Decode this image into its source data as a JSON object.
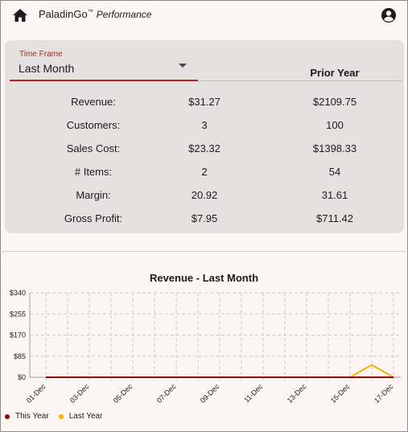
{
  "header": {
    "app_name": "PaladinGo",
    "trademark": "™",
    "subtitle": "Performance",
    "home_icon": "home-icon",
    "account_icon": "account-circle-icon"
  },
  "time_frame": {
    "label": "Time Frame",
    "value": "Last Month"
  },
  "columns": {
    "prior": "Prior Year"
  },
  "metrics": [
    {
      "label": "Revenue:",
      "current": "$31.27",
      "prior": "$2109.75"
    },
    {
      "label": "Customers:",
      "current": "3",
      "prior": "100"
    },
    {
      "label": "Sales Cost:",
      "current": "$23.32",
      "prior": "$1398.33"
    },
    {
      "label": "# Items:",
      "current": "2",
      "prior": "54"
    },
    {
      "label": "Margin:",
      "current": "20.92",
      "prior": "31.61"
    },
    {
      "label": "Gross Profit:",
      "current": "$7.95",
      "prior": "$711.42"
    }
  ],
  "colors": {
    "accent": "#b3261e",
    "this_year": "#8b0000",
    "last_year": "#f4b400",
    "card": "#e5e1e1",
    "background": "#fdf5f4"
  },
  "chart_data": {
    "type": "line",
    "title": "Revenue - Last Month",
    "x": [
      "01-Dec",
      "02-Dec",
      "03-Dec",
      "04-Dec",
      "05-Dec",
      "06-Dec",
      "07-Dec",
      "08-Dec",
      "09-Dec",
      "10-Dec",
      "11-Dec",
      "12-Dec",
      "13-Dec",
      "14-Dec",
      "15-Dec",
      "16-Dec",
      "17-Dec"
    ],
    "tick_labels": [
      "01-Dec",
      "03-Dec",
      "05-Dec",
      "07-Dec",
      "09-Dec",
      "11-Dec",
      "13-Dec",
      "15-Dec",
      "17-Dec"
    ],
    "y_ticks": [
      "$0",
      "$85",
      "$170",
      "$255",
      "$340"
    ],
    "ylim": [
      0,
      340
    ],
    "grid": true,
    "legend_position": "bottom-left",
    "series": [
      {
        "name": "This Year",
        "values": [
          0,
          0,
          0,
          0,
          0,
          0,
          0,
          0,
          0,
          0,
          0,
          0,
          0,
          0,
          0,
          0,
          0
        ]
      },
      {
        "name": "Last Year",
        "values": [
          0,
          0,
          0,
          0,
          0,
          0,
          0,
          0,
          0,
          0,
          0,
          0,
          0,
          0,
          0,
          50,
          0
        ]
      }
    ]
  }
}
